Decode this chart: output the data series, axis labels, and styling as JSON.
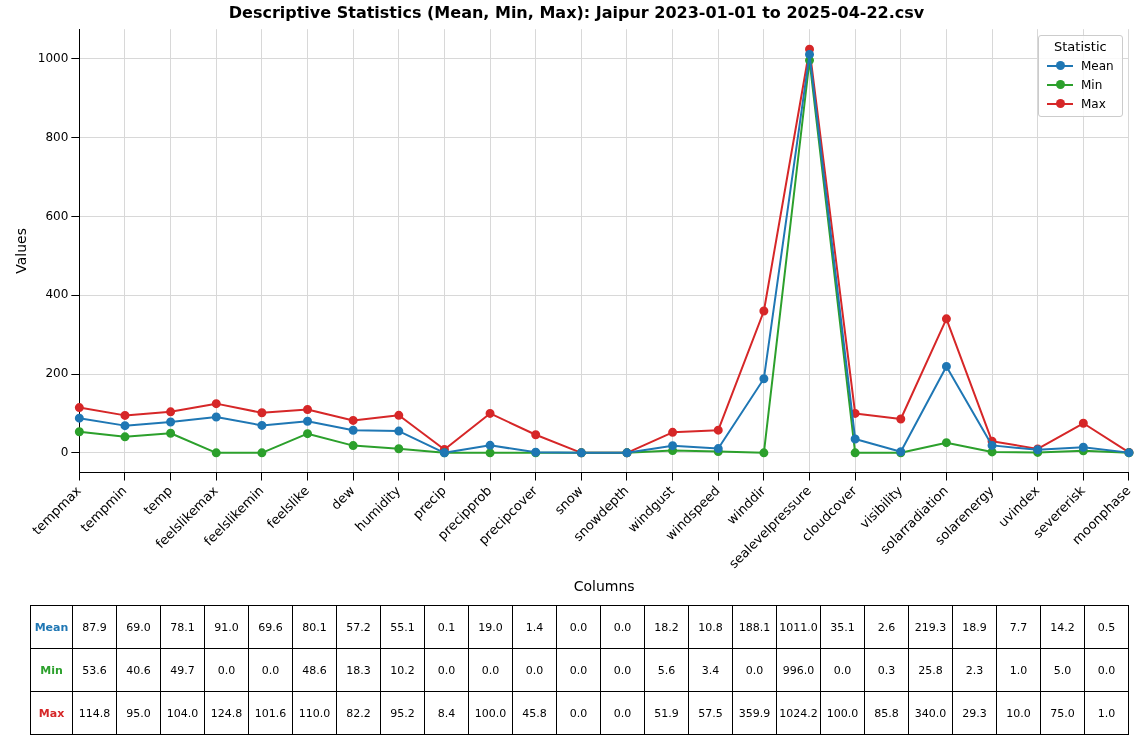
{
  "chart_data": {
    "type": "line",
    "title": "Descriptive Statistics (Mean, Min, Max): Jaipur 2023-01-01 to 2025-04-22.csv",
    "xlabel": "Columns",
    "ylabel": "Values",
    "legend_title": "Statistic",
    "categories": [
      "tempmax",
      "tempmin",
      "temp",
      "feelslikemax",
      "feelslikemin",
      "feelslike",
      "dew",
      "humidity",
      "precip",
      "precipprob",
      "precipcover",
      "snow",
      "snowdepth",
      "windgust",
      "windspeed",
      "winddir",
      "sealevelpressure",
      "cloudcover",
      "visibility",
      "solarradiation",
      "solarenergy",
      "uvindex",
      "severerisk",
      "moonphase"
    ],
    "series": [
      {
        "name": "Mean",
        "color": "#1f77b4",
        "values": [
          87.9,
          69.0,
          78.1,
          91.0,
          69.6,
          80.1,
          57.2,
          55.1,
          0.1,
          19.0,
          1.4,
          0.0,
          0.0,
          18.2,
          10.8,
          188.1,
          1011.0,
          35.1,
          2.6,
          219.3,
          18.9,
          7.7,
          14.2,
          0.5
        ],
        "value_labels": [
          "87.9",
          "69.0",
          "78.1",
          "91.0",
          "69.6",
          "80.1",
          "57.2",
          "55.1",
          "0.1",
          "19.0",
          "1.4",
          "0.0",
          "0.0",
          "18.2",
          "10.8",
          "188.1",
          "1011.0",
          "35.1",
          "2.6",
          "219.3",
          "18.9",
          "7.7",
          "14.2",
          "0.5"
        ]
      },
      {
        "name": "Min",
        "color": "#2ca02c",
        "values": [
          53.6,
          40.6,
          49.7,
          0.0,
          0.0,
          48.6,
          18.3,
          10.2,
          0.0,
          0.0,
          0.0,
          0.0,
          0.0,
          5.6,
          3.4,
          0.0,
          996.0,
          0.0,
          0.3,
          25.8,
          2.3,
          1.0,
          5.0,
          0.0
        ],
        "value_labels": [
          "53.6",
          "40.6",
          "49.7",
          "0.0",
          "0.0",
          "48.6",
          "18.3",
          "10.2",
          "0.0",
          "0.0",
          "0.0",
          "0.0",
          "0.0",
          "5.6",
          "3.4",
          "0.0",
          "996.0",
          "0.0",
          "0.3",
          "25.8",
          "2.3",
          "1.0",
          "5.0",
          "0.0"
        ]
      },
      {
        "name": "Max",
        "color": "#d62728",
        "values": [
          114.8,
          95.0,
          104.0,
          124.8,
          101.6,
          110.0,
          82.2,
          95.2,
          8.4,
          100.0,
          45.8,
          0.0,
          0.0,
          51.9,
          57.5,
          359.9,
          1024.2,
          100.0,
          85.8,
          340.0,
          29.3,
          10.0,
          75.0,
          1.0
        ],
        "value_labels": [
          "114.8",
          "95.0",
          "104.0",
          "124.8",
          "101.6",
          "110.0",
          "82.2",
          "95.2",
          "8.4",
          "100.0",
          "45.8",
          "0.0",
          "0.0",
          "51.9",
          "57.5",
          "359.9",
          "1024.2",
          "100.0",
          "85.8",
          "340.0",
          "29.3",
          "10.0",
          "75.0",
          "1.0"
        ]
      }
    ],
    "ylim": [
      -50,
      1075
    ],
    "yticks": [
      0,
      200,
      400,
      600,
      800,
      1000
    ],
    "grid": true,
    "legend": "top right",
    "marker": "circle",
    "line_style": "solid"
  }
}
